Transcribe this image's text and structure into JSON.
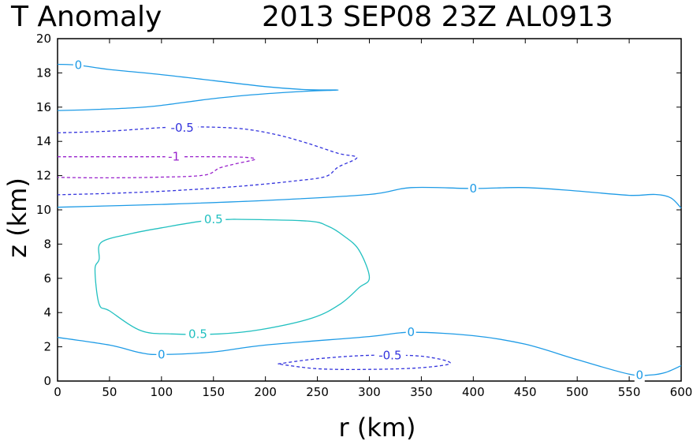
{
  "chart_data": {
    "type": "contour",
    "title_left": "T Anomaly",
    "title_right": "2013 SEP08 23Z   AL0913",
    "xlabel": "r (km)",
    "ylabel": "z (km)",
    "xlim": [
      0,
      600
    ],
    "ylim": [
      0,
      20
    ],
    "xticks": [
      0,
      50,
      100,
      150,
      200,
      250,
      300,
      350,
      400,
      450,
      500,
      550,
      600
    ],
    "yticks": [
      0,
      2,
      4,
      6,
      8,
      10,
      12,
      14,
      16,
      18,
      20
    ],
    "grid": false,
    "colors": {
      "zero": "#1e9be6",
      "positive": "#22c0c0",
      "neg_half": "#3333dd",
      "neg_one": "#9922cc"
    },
    "contours": [
      {
        "id": "zero-upper",
        "level": 0,
        "label": "0",
        "style": "solid",
        "color_key": "zero",
        "points": [
          [
            0,
            18.5
          ],
          [
            20,
            18.45
          ],
          [
            50,
            18.2
          ],
          [
            100,
            17.9
          ],
          [
            150,
            17.55
          ],
          [
            200,
            17.2
          ],
          [
            240,
            17.02
          ],
          [
            270,
            17.0
          ],
          [
            240,
            16.93
          ],
          [
            200,
            16.78
          ],
          [
            150,
            16.5
          ],
          [
            100,
            16.1
          ],
          [
            70,
            15.95
          ],
          [
            30,
            15.85
          ],
          [
            0,
            15.8
          ]
        ],
        "labels": [
          [
            20,
            18.45
          ]
        ]
      },
      {
        "id": "minus-half-upper",
        "level": -0.5,
        "label": "-0.5",
        "style": "dashed",
        "color_key": "neg_half",
        "points": [
          [
            0,
            14.5
          ],
          [
            50,
            14.6
          ],
          [
            100,
            14.8
          ],
          [
            130,
            14.85
          ],
          [
            175,
            14.75
          ],
          [
            210,
            14.4
          ],
          [
            240,
            13.9
          ],
          [
            270,
            13.3
          ],
          [
            288,
            13.05
          ],
          [
            270,
            12.5
          ],
          [
            258,
            11.95
          ],
          [
            230,
            11.7
          ],
          [
            180,
            11.4
          ],
          [
            120,
            11.15
          ],
          [
            60,
            10.98
          ],
          [
            0,
            10.88
          ]
        ],
        "labels": [
          [
            120,
            14.8
          ]
        ]
      },
      {
        "id": "minus-one",
        "level": -1,
        "label": "-1",
        "style": "dashed",
        "color_key": "neg_one",
        "points": [
          [
            0,
            13.1
          ],
          [
            50,
            13.1
          ],
          [
            100,
            13.1
          ],
          [
            150,
            13.1
          ],
          [
            180,
            13.07
          ],
          [
            190,
            12.95
          ],
          [
            172,
            12.7
          ],
          [
            156,
            12.45
          ],
          [
            140,
            12.02
          ],
          [
            90,
            11.9
          ],
          [
            40,
            11.87
          ],
          [
            0,
            11.9
          ]
        ],
        "labels": [
          [
            112,
            13.1
          ]
        ]
      },
      {
        "id": "zero-mid",
        "level": 0,
        "label": "0",
        "style": "solid",
        "color_key": "zero",
        "points": [
          [
            0,
            10.15
          ],
          [
            100,
            10.32
          ],
          [
            200,
            10.55
          ],
          [
            300,
            10.9
          ],
          [
            340,
            11.3
          ],
          [
            400,
            11.25
          ],
          [
            450,
            11.3
          ],
          [
            500,
            11.1
          ],
          [
            550,
            10.85
          ],
          [
            575,
            10.9
          ],
          [
            590,
            10.7
          ],
          [
            600,
            10.1
          ]
        ],
        "labels": [
          [
            400,
            11.25
          ]
        ]
      },
      {
        "id": "plus-half",
        "level": 0.5,
        "label": "0.5",
        "style": "solid",
        "color_key": "positive",
        "points": [
          [
            170,
            9.45
          ],
          [
            240,
            9.35
          ],
          [
            260,
            9.05
          ],
          [
            275,
            8.5
          ],
          [
            290,
            7.65
          ],
          [
            300,
            6.05
          ],
          [
            290,
            5.45
          ],
          [
            272,
            4.5
          ],
          [
            245,
            3.68
          ],
          [
            195,
            3.0
          ],
          [
            155,
            2.75
          ],
          [
            110,
            2.75
          ],
          [
            80,
            2.95
          ],
          [
            50,
            4.1
          ],
          [
            40,
            4.5
          ],
          [
            36,
            6.5
          ],
          [
            40,
            7.1
          ],
          [
            42,
            8.1
          ],
          [
            70,
            8.6
          ],
          [
            100,
            8.95
          ],
          [
            140,
            9.35
          ],
          [
            170,
            9.45
          ]
        ],
        "labels": [
          [
            150,
            9.45
          ],
          [
            135,
            2.75
          ]
        ]
      },
      {
        "id": "zero-lower",
        "level": 0,
        "label": "0",
        "style": "solid",
        "color_key": "zero",
        "points": [
          [
            0,
            2.55
          ],
          [
            50,
            2.1
          ],
          [
            80,
            1.65
          ],
          [
            100,
            1.55
          ],
          [
            150,
            1.7
          ],
          [
            200,
            2.1
          ],
          [
            300,
            2.6
          ],
          [
            340,
            2.85
          ],
          [
            400,
            2.65
          ],
          [
            450,
            2.15
          ],
          [
            500,
            1.25
          ],
          [
            550,
            0.4
          ],
          [
            570,
            0.35
          ],
          [
            585,
            0.5
          ],
          [
            600,
            0.9
          ]
        ],
        "labels": [
          [
            100,
            1.55
          ],
          [
            340,
            2.85
          ],
          [
            560,
            0.35
          ]
        ]
      },
      {
        "id": "minus-half-lower",
        "level": -0.5,
        "label": "-0.5",
        "style": "dashed",
        "color_key": "neg_half",
        "points": [
          [
            212,
            1.0
          ],
          [
            250,
            1.3
          ],
          [
            300,
            1.5
          ],
          [
            350,
            1.45
          ],
          [
            378,
            1.05
          ],
          [
            350,
            0.78
          ],
          [
            300,
            0.68
          ],
          [
            250,
            0.72
          ],
          [
            212,
            1.0
          ]
        ],
        "labels": [
          [
            320,
            1.5
          ]
        ]
      }
    ]
  }
}
